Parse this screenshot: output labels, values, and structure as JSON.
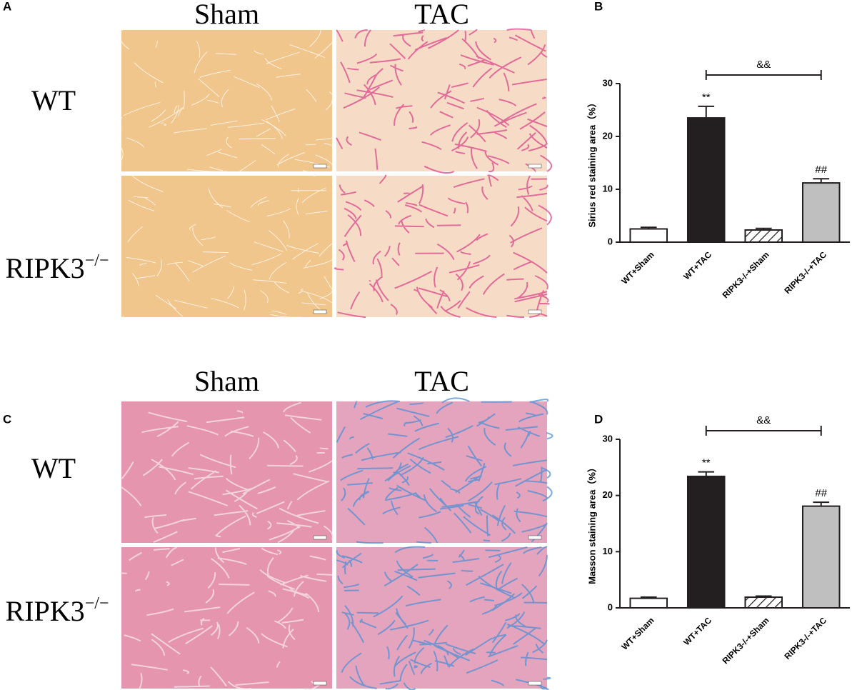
{
  "figure": {
    "panel_labels": [
      "A",
      "B",
      "C",
      "D"
    ],
    "micrographs": [
      {
        "column_headers": [
          "Sham",
          "TAC"
        ],
        "row_labels": [
          {
            "text": "WT"
          },
          {
            "text": "RIPK3",
            "superscript": "−/−"
          }
        ]
      },
      {
        "column_headers": [
          "Sham",
          "TAC"
        ],
        "row_labels": [
          {
            "text": "WT"
          },
          {
            "text": "RIPK3",
            "superscript": "−/−"
          }
        ]
      }
    ]
  },
  "chart_data": [
    {
      "type": "bar",
      "ylabel": "Sirius red staining area（%）",
      "categories": [
        "WT+Sham",
        "WT+TAC",
        "RIPK3-/-+Sham",
        "RIPK3-/-+TAC"
      ],
      "values": [
        2.5,
        23.5,
        2.3,
        11.2
      ],
      "errors": [
        0.3,
        2.2,
        0.3,
        0.8
      ],
      "fills": [
        "#ffffff",
        "#231f20",
        "#ffffff",
        "#bfbfbf"
      ],
      "hatched": [
        false,
        false,
        true,
        false
      ],
      "ylim": [
        0,
        30
      ],
      "yticks": [
        0,
        10,
        20,
        30
      ],
      "annotations": [
        {
          "text": "**",
          "category": "WT+TAC"
        },
        {
          "text": "##",
          "category": "RIPK3-/-+TAC"
        }
      ],
      "bracket": {
        "text": "&&",
        "from": "WT+TAC",
        "to": "RIPK3-/-+TAC"
      }
    },
    {
      "type": "bar",
      "ylabel": "Masson staining area（%）",
      "categories": [
        "WT+Sham",
        "WT+TAC",
        "RIPK3-/-+Sham",
        "RIPK3-/-+TAC"
      ],
      "values": [
        1.7,
        23.4,
        1.9,
        18.1
      ],
      "errors": [
        0.2,
        0.8,
        0.2,
        0.7
      ],
      "fills": [
        "#ffffff",
        "#231f20",
        "#ffffff",
        "#bfbfbf"
      ],
      "hatched": [
        false,
        false,
        true,
        false
      ],
      "ylim": [
        0,
        30
      ],
      "yticks": [
        0,
        10,
        20,
        30
      ],
      "annotations": [
        {
          "text": "**",
          "category": "WT+TAC"
        },
        {
          "text": "##",
          "category": "RIPK3-/-+TAC"
        }
      ],
      "bracket": {
        "text": "&&",
        "from": "WT+TAC",
        "to": "RIPK3-/-+TAC"
      }
    }
  ]
}
